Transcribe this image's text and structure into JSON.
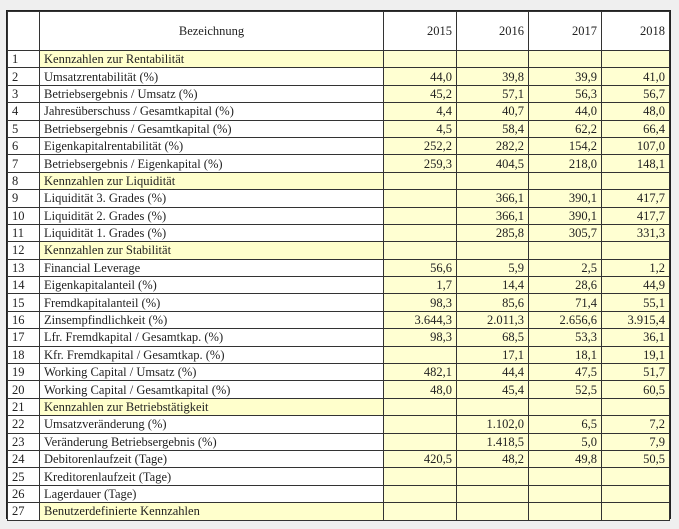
{
  "header": {
    "number": "",
    "label": "Bezeichnung",
    "years": [
      "2015",
      "2016",
      "2017",
      "2018"
    ]
  },
  "colors": {
    "value_cell": "#ffffd2",
    "section_cell": "#ffffcc",
    "border": "#333333"
  },
  "rows": [
    {
      "n": "1",
      "label": "Kennzahlen zur Rentabilität",
      "section": true,
      "values": [
        "",
        "",
        "",
        ""
      ]
    },
    {
      "n": "2",
      "label": "Umsatzrentabilität (%)",
      "section": false,
      "values": [
        "44,0",
        "39,8",
        "39,9",
        "41,0"
      ]
    },
    {
      "n": "3",
      "label": "Betriebsergebnis / Umsatz (%)",
      "section": false,
      "values": [
        "45,2",
        "57,1",
        "56,3",
        "56,7"
      ]
    },
    {
      "n": "4",
      "label": "Jahresüberschuss / Gesamtkapital (%)",
      "section": false,
      "values": [
        "4,4",
        "40,7",
        "44,0",
        "48,0"
      ]
    },
    {
      "n": "5",
      "label": "Betriebsergebnis / Gesamtkapital (%)",
      "section": false,
      "values": [
        "4,5",
        "58,4",
        "62,2",
        "66,4"
      ]
    },
    {
      "n": "6",
      "label": "Eigenkapitalrentabilität (%)",
      "section": false,
      "values": [
        "252,2",
        "282,2",
        "154,2",
        "107,0"
      ]
    },
    {
      "n": "7",
      "label": "Betriebsergebnis / Eigenkapital (%)",
      "section": false,
      "values": [
        "259,3",
        "404,5",
        "218,0",
        "148,1"
      ]
    },
    {
      "n": "8",
      "label": "Kennzahlen zur Liquidität",
      "section": true,
      "values": [
        "",
        "",
        "",
        ""
      ]
    },
    {
      "n": "9",
      "label": "Liquidität 3. Grades (%)",
      "section": false,
      "values": [
        "",
        "366,1",
        "390,1",
        "417,7"
      ]
    },
    {
      "n": "10",
      "label": "Liquidität 2. Grades (%)",
      "section": false,
      "values": [
        "",
        "366,1",
        "390,1",
        "417,7"
      ]
    },
    {
      "n": "11",
      "label": "Liquidität 1. Grades (%)",
      "section": false,
      "values": [
        "",
        "285,8",
        "305,7",
        "331,3"
      ]
    },
    {
      "n": "12",
      "label": "Kennzahlen zur Stabilität",
      "section": true,
      "values": [
        "",
        "",
        "",
        ""
      ]
    },
    {
      "n": "13",
      "label": "Financial Leverage",
      "section": false,
      "values": [
        "56,6",
        "5,9",
        "2,5",
        "1,2"
      ]
    },
    {
      "n": "14",
      "label": "Eigenkapitalanteil (%)",
      "section": false,
      "values": [
        "1,7",
        "14,4",
        "28,6",
        "44,9"
      ]
    },
    {
      "n": "15",
      "label": "Fremdkapitalanteil (%)",
      "section": false,
      "values": [
        "98,3",
        "85,6",
        "71,4",
        "55,1"
      ]
    },
    {
      "n": "16",
      "label": "Zinsempfindlichkeit (%)",
      "section": false,
      "values": [
        "3.644,3",
        "2.011,3",
        "2.656,6",
        "3.915,4"
      ]
    },
    {
      "n": "17",
      "label": "Lfr. Fremdkapital / Gesamtkap. (%)",
      "section": false,
      "values": [
        "98,3",
        "68,5",
        "53,3",
        "36,1"
      ]
    },
    {
      "n": "18",
      "label": "Kfr. Fremdkapital / Gesamtkap. (%)",
      "section": false,
      "values": [
        "",
        "17,1",
        "18,1",
        "19,1"
      ]
    },
    {
      "n": "19",
      "label": "Working Capital / Umsatz (%)",
      "section": false,
      "values": [
        "482,1",
        "44,4",
        "47,5",
        "51,7"
      ]
    },
    {
      "n": "20",
      "label": "Working Capital / Gesamtkapital (%)",
      "section": false,
      "values": [
        "48,0",
        "45,4",
        "52,5",
        "60,5"
      ]
    },
    {
      "n": "21",
      "label": "Kennzahlen zur Betriebstätigkeit",
      "section": true,
      "values": [
        "",
        "",
        "",
        ""
      ]
    },
    {
      "n": "22",
      "label": "Umsatzveränderung (%)",
      "section": false,
      "values": [
        "",
        "1.102,0",
        "6,5",
        "7,2"
      ]
    },
    {
      "n": "23",
      "label": "Veränderung Betriebsergebnis (%)",
      "section": false,
      "values": [
        "",
        "1.418,5",
        "5,0",
        "7,9"
      ]
    },
    {
      "n": "24",
      "label": "Debitorenlaufzeit (Tage)",
      "section": false,
      "values": [
        "420,5",
        "48,2",
        "49,8",
        "50,5"
      ]
    },
    {
      "n": "25",
      "label": "Kreditorenlaufzeit (Tage)",
      "section": false,
      "values": [
        "",
        "",
        "",
        ""
      ]
    },
    {
      "n": "26",
      "label": "Lagerdauer (Tage)",
      "section": false,
      "values": [
        "",
        "",
        "",
        ""
      ]
    },
    {
      "n": "27",
      "label": "Benutzerdefinierte Kennzahlen",
      "section": true,
      "values": [
        "",
        "",
        "",
        ""
      ]
    }
  ]
}
